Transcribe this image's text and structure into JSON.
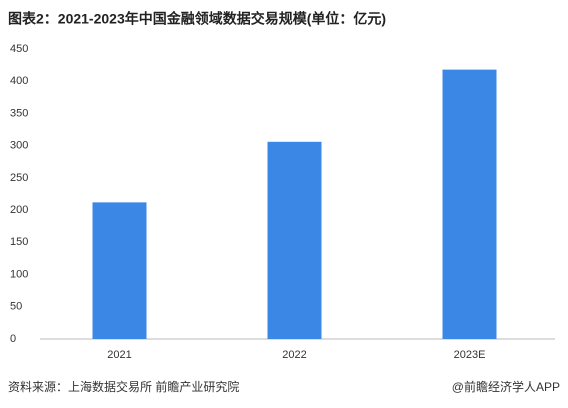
{
  "chart_data": {
    "type": "bar",
    "title": "图表2：2021-2023年中国金融领域数据交易规模(单位：亿元)",
    "categories": [
      "2021",
      "2022",
      "2023E"
    ],
    "values": [
      212,
      306,
      418
    ],
    "color": "#3b87e6",
    "ylim": [
      0,
      450
    ],
    "yticks": [
      0,
      50,
      100,
      150,
      200,
      250,
      300,
      350,
      400,
      450
    ],
    "grid": false,
    "source": "资料来源：上海数据交易所 前瞻产业研究院",
    "credit": "@前瞻经济学人APP"
  }
}
